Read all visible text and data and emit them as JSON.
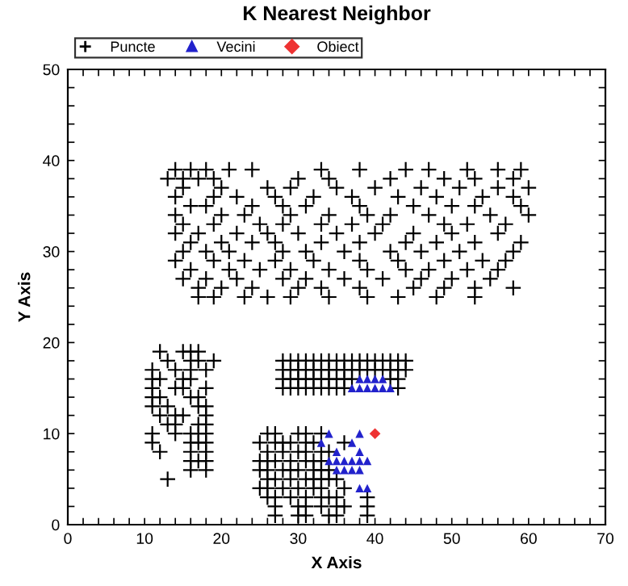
{
  "chart_data": {
    "type": "scatter",
    "title": "K Nearest Neighbor",
    "xlabel": "X Axis",
    "ylabel": "Y Axis",
    "xlim": [
      0,
      70
    ],
    "ylim": [
      0,
      50
    ],
    "xticks": [
      0,
      {
        "value": 2,
        "label": null
      },
      {
        "value": 4,
        "label": null
      },
      {
        "value": 6,
        "label": null
      },
      {
        "value": 8,
        "label": null
      },
      10,
      {
        "value": 12,
        "label": null
      },
      {
        "value": 14,
        "label": null
      },
      {
        "value": 16,
        "label": null
      },
      {
        "value": 18,
        "label": null
      },
      20,
      {
        "value": 22,
        "label": null
      },
      {
        "value": 24,
        "label": null
      },
      {
        "value": 26,
        "label": null
      },
      {
        "value": 28,
        "label": null
      },
      30,
      {
        "value": 32,
        "label": null
      },
      {
        "value": 34,
        "label": null
      },
      {
        "value": 36,
        "label": null
      },
      {
        "value": 38,
        "label": null
      },
      40,
      {
        "value": 42,
        "label": null
      },
      {
        "value": 44,
        "label": null
      },
      {
        "value": 46,
        "label": null
      },
      {
        "value": 48,
        "label": null
      },
      50,
      {
        "value": 52,
        "label": null
      },
      {
        "value": 54,
        "label": null
      },
      {
        "value": 56,
        "label": null
      },
      {
        "value": 58,
        "label": null
      },
      60,
      {
        "value": 62,
        "label": null
      },
      {
        "value": 64,
        "label": null
      },
      {
        "value": 66,
        "label": null
      },
      {
        "value": 68,
        "label": null
      },
      70
    ],
    "yticks": [
      0,
      {
        "value": 2,
        "label": null
      },
      {
        "value": 4,
        "label": null
      },
      {
        "value": 6,
        "label": null
      },
      {
        "value": 8,
        "label": null
      },
      10,
      {
        "value": 12,
        "label": null
      },
      {
        "value": 14,
        "label": null
      },
      {
        "value": 16,
        "label": null
      },
      {
        "value": 18,
        "label": null
      },
      20,
      {
        "value": 22,
        "label": null
      },
      {
        "value": 24,
        "label": null
      },
      {
        "value": 26,
        "label": null
      },
      {
        "value": 28,
        "label": null
      },
      30,
      {
        "value": 32,
        "label": null
      },
      {
        "value": 34,
        "label": null
      },
      {
        "value": 36,
        "label": null
      },
      {
        "value": 38,
        "label": null
      },
      40,
      {
        "value": 42,
        "label": null
      },
      {
        "value": 44,
        "label": null
      },
      {
        "value": 46,
        "label": null
      },
      {
        "value": 48,
        "label": null
      },
      50
    ],
    "grid": false,
    "legend": "top",
    "series": [
      {
        "name": "Puncte",
        "color": "#000000",
        "marker": "cross",
        "x": [
          14,
          16,
          18,
          21,
          24,
          33,
          38,
          44,
          47,
          52,
          56,
          59,
          13,
          15,
          17,
          19,
          30,
          34,
          42,
          49,
          53,
          58,
          15,
          20,
          26,
          29,
          35,
          40,
          46,
          51,
          56,
          60,
          14,
          19,
          22,
          27,
          32,
          37,
          43,
          48,
          54,
          58,
          16,
          18,
          24,
          28,
          31,
          38,
          45,
          50,
          53,
          59,
          14,
          20,
          23,
          29,
          34,
          39,
          42,
          47,
          55,
          60,
          15,
          19,
          25,
          28,
          33,
          37,
          41,
          49,
          52,
          57,
          14,
          17,
          22,
          26,
          30,
          35,
          40,
          45,
          50,
          56,
          16,
          20,
          24,
          27,
          33,
          38,
          44,
          48,
          53,
          59,
          15,
          18,
          21,
          28,
          31,
          36,
          42,
          46,
          51,
          58,
          14,
          19,
          23,
          27,
          32,
          38,
          43,
          49,
          54,
          57,
          16,
          21,
          25,
          29,
          34,
          39,
          44,
          47,
          52,
          56,
          15,
          18,
          22,
          28,
          31,
          36,
          41,
          46,
          50,
          55,
          17,
          20,
          24,
          30,
          33,
          38,
          45,
          49,
          53,
          58,
          17,
          19,
          23,
          26,
          29,
          34,
          39,
          43,
          48,
          53,
          12,
          15,
          16,
          17,
          13,
          16,
          17,
          19,
          11,
          14,
          16,
          18,
          11,
          12,
          15,
          16,
          11,
          14,
          15,
          18,
          11,
          12,
          16,
          17,
          11,
          13,
          17,
          18,
          12,
          14,
          15,
          18,
          13,
          14,
          17,
          18,
          11,
          14,
          16,
          17,
          18,
          11,
          16,
          17,
          18,
          12,
          16,
          18,
          16,
          17,
          18,
          16,
          18,
          13,
          28,
          29,
          30,
          31,
          32,
          33,
          34,
          35,
          36,
          37,
          38,
          39,
          40,
          41,
          42,
          43,
          44,
          28,
          29,
          30,
          31,
          32,
          33,
          34,
          35,
          36,
          37,
          38,
          39,
          40,
          41,
          42,
          43,
          44,
          28,
          29,
          30,
          31,
          32,
          33,
          34,
          35,
          36,
          37,
          42,
          43,
          28,
          29,
          30,
          31,
          32,
          33,
          34,
          35,
          36,
          43,
          26,
          27,
          30,
          31,
          33,
          25,
          27,
          28,
          29,
          31,
          32,
          36,
          26,
          28,
          30,
          31,
          33,
          34,
          25,
          26,
          27,
          29,
          31,
          32,
          33,
          25,
          26,
          28,
          29,
          30,
          32,
          33,
          34,
          26,
          27,
          29,
          31,
          32,
          33,
          34,
          35,
          25,
          26,
          28,
          30,
          32,
          33,
          36,
          26,
          27,
          29,
          31,
          33,
          34,
          35,
          39,
          27,
          30,
          31,
          33,
          35,
          36,
          39,
          27,
          30,
          31,
          34,
          35,
          39
        ],
        "values": [
          39,
          39,
          39,
          39,
          39,
          39,
          39,
          39,
          39,
          39,
          39,
          39,
          38,
          38,
          38,
          38,
          38,
          38,
          38,
          38,
          38,
          38,
          37,
          37,
          37,
          37,
          37,
          37,
          37,
          37,
          37,
          37,
          36,
          36,
          36,
          36,
          36,
          36,
          36,
          36,
          36,
          36,
          35,
          35,
          35,
          35,
          35,
          35,
          35,
          35,
          35,
          35,
          34,
          34,
          34,
          34,
          34,
          34,
          34,
          34,
          34,
          34,
          33,
          33,
          33,
          33,
          33,
          33,
          33,
          33,
          33,
          33,
          32,
          32,
          32,
          32,
          32,
          32,
          32,
          32,
          32,
          32,
          31,
          31,
          31,
          31,
          31,
          31,
          31,
          31,
          31,
          31,
          30,
          30,
          30,
          30,
          30,
          30,
          30,
          30,
          30,
          30,
          29,
          29,
          29,
          29,
          29,
          29,
          29,
          29,
          29,
          29,
          28,
          28,
          28,
          28,
          28,
          28,
          28,
          28,
          28,
          28,
          27,
          27,
          27,
          27,
          27,
          27,
          27,
          27,
          27,
          27,
          26,
          26,
          26,
          26,
          26,
          26,
          26,
          26,
          26,
          26,
          25,
          25,
          25,
          25,
          25,
          25,
          25,
          25,
          25,
          25,
          19,
          19,
          19,
          19,
          18,
          18,
          18,
          18,
          17,
          17,
          17,
          17,
          16,
          16,
          16,
          16,
          15,
          15,
          15,
          15,
          14,
          14,
          14,
          14,
          13,
          13,
          13,
          13,
          12,
          12,
          12,
          12,
          11,
          11,
          11,
          11,
          10,
          10,
          10,
          10,
          10,
          9,
          9,
          9,
          9,
          8,
          8,
          8,
          7,
          7,
          7,
          6,
          6,
          5,
          18,
          18,
          18,
          18,
          18,
          18,
          18,
          18,
          18,
          18,
          18,
          18,
          18,
          18,
          18,
          18,
          18,
          17,
          17,
          17,
          17,
          17,
          17,
          17,
          17,
          17,
          17,
          17,
          17,
          17,
          17,
          17,
          17,
          17,
          16,
          16,
          16,
          16,
          16,
          16,
          16,
          16,
          16,
          16,
          16,
          16,
          15,
          15,
          15,
          15,
          15,
          15,
          15,
          15,
          15,
          15,
          10,
          10,
          10,
          10,
          10,
          9,
          9,
          9,
          9,
          9,
          9,
          9,
          8,
          8,
          8,
          8,
          8,
          8,
          7,
          7,
          7,
          7,
          7,
          7,
          7,
          6,
          6,
          6,
          6,
          6,
          6,
          6,
          6,
          5,
          5,
          5,
          5,
          5,
          5,
          5,
          5,
          4,
          4,
          4,
          4,
          4,
          4,
          4,
          3,
          3,
          3,
          3,
          3,
          3,
          3,
          3,
          2,
          2,
          2,
          2,
          2,
          2,
          2,
          1,
          1,
          1,
          1,
          1,
          1
        ]
      },
      {
        "name": "Vecini",
        "color": "#2222cc",
        "marker": "triangle",
        "x": [
          37,
          38,
          39,
          40,
          41,
          42,
          38,
          39,
          40,
          41,
          34,
          38,
          33,
          37,
          35,
          38,
          34,
          35,
          36,
          37,
          38,
          39,
          35,
          36,
          37,
          38,
          38,
          39
        ],
        "values": [
          15,
          15,
          15,
          15,
          15,
          15,
          16,
          16,
          16,
          16,
          10,
          10,
          9,
          9,
          8,
          8,
          7,
          7,
          7,
          7,
          7,
          7,
          6,
          6,
          6,
          6,
          4,
          4
        ]
      },
      {
        "name": "Obiect",
        "color": "#ee3333",
        "marker": "diamond",
        "x": [
          40
        ],
        "values": [
          10
        ]
      }
    ]
  }
}
